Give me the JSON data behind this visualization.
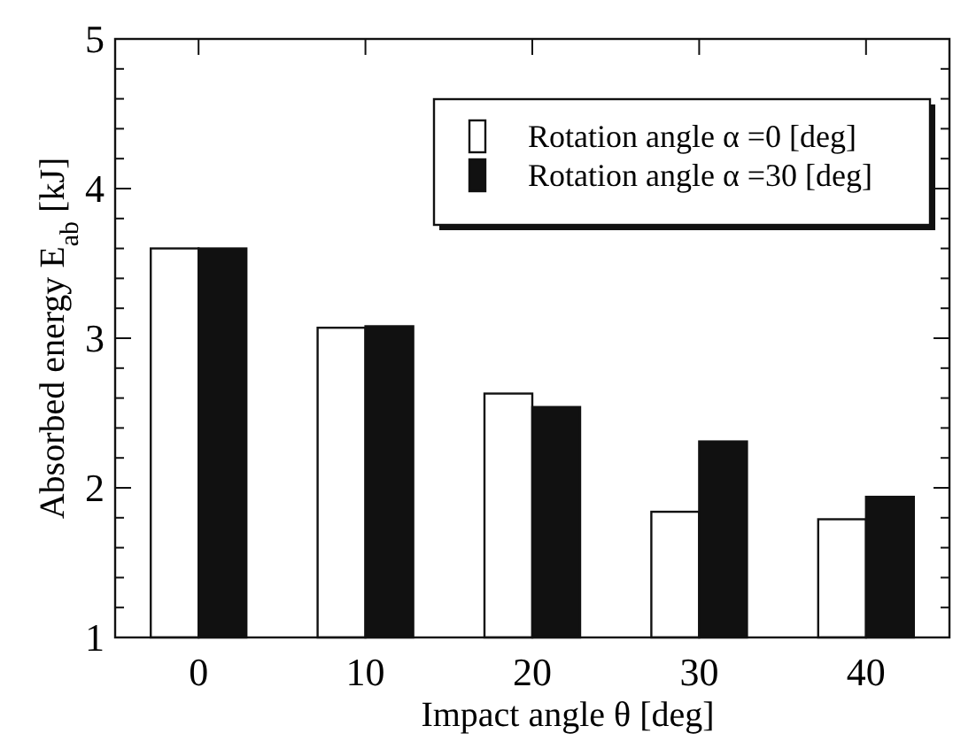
{
  "chart_data": {
    "type": "bar",
    "xlabel": "Impact angle  θ  [deg]",
    "ylabel": "Absorbed energy E$_{ab}$ [kJ]",
    "categories": [
      "0",
      "10",
      "20",
      "30",
      "40"
    ],
    "series": [
      {
        "name": "Rotation angle  α =0 [deg]",
        "color": "#ffffff",
        "values": [
          3.6,
          3.07,
          2.63,
          1.84,
          1.79
        ]
      },
      {
        "name": "Rotation angle α =30 [deg]",
        "color": "#111111",
        "values": [
          3.6,
          3.08,
          2.54,
          2.31,
          1.94
        ]
      }
    ],
    "ylim": [
      1,
      5
    ],
    "yticks": [
      1,
      {
        "value": 1.2,
        "label": null
      },
      {
        "value": 1.4,
        "label": null
      },
      {
        "value": 1.6,
        "label": null
      },
      {
        "value": 1.8,
        "label": null
      },
      2,
      {
        "value": 2.2,
        "label": null
      },
      {
        "value": 2.4,
        "label": null
      },
      {
        "value": 2.6,
        "label": null
      },
      {
        "value": 2.8,
        "label": null
      },
      3,
      {
        "value": 3.2,
        "label": null
      },
      {
        "value": 3.4,
        "label": null
      },
      {
        "value": 3.6,
        "label": null
      },
      {
        "value": 3.8,
        "label": null
      },
      4,
      {
        "value": 4.2,
        "label": null
      },
      {
        "value": 4.4,
        "label": null
      },
      {
        "value": 4.6,
        "label": null
      },
      {
        "value": 4.8,
        "label": null
      },
      5
    ],
    "legend": "top right",
    "grid": false
  }
}
